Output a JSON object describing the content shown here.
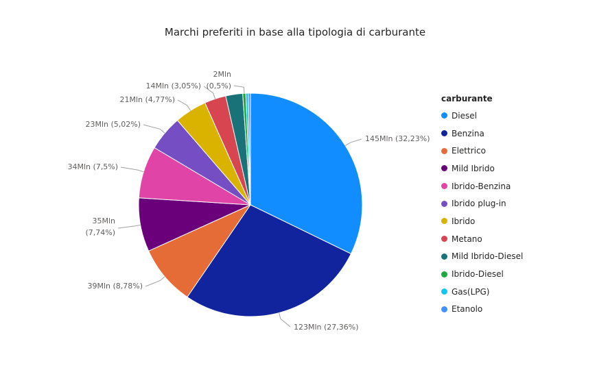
{
  "chart_data": {
    "type": "pie",
    "title": "Marchi preferiti in base alla tipologia di carburante",
    "legend_title": "carburante",
    "legend_position": "right",
    "slices": [
      {
        "name": "Diesel",
        "value": 145,
        "value_label": "145Mln",
        "percent_label": "(32,23%)",
        "color": "#118DFF"
      },
      {
        "name": "Benzina",
        "value": 123,
        "value_label": "123Mln",
        "percent_label": "(27,36%)",
        "color": "#12239E"
      },
      {
        "name": "Elettrico",
        "value": 39,
        "value_label": "39Mln",
        "percent_label": "(8,78%)",
        "color": "#E66C37"
      },
      {
        "name": "Mild Ibrido",
        "value": 35,
        "value_label": "35Mln",
        "percent_label": "(7,74%)",
        "color": "#6B007B"
      },
      {
        "name": "Ibrido-Benzina",
        "value": 34,
        "value_label": "34Mln",
        "percent_label": "(7,5%)",
        "color": "#E044A7"
      },
      {
        "name": "Ibrido plug-in",
        "value": 23,
        "value_label": "23Mln",
        "percent_label": "(5,02%)",
        "color": "#744EC2"
      },
      {
        "name": "Ibrido",
        "value": 21,
        "value_label": "21Mln",
        "percent_label": "(4,77%)",
        "color": "#D9B300"
      },
      {
        "name": "Metano",
        "value": 14,
        "value_label": "14Mln",
        "percent_label": "(3,05%)",
        "color": "#D64550"
      },
      {
        "name": "Mild Ibrido-Diesel",
        "value": 11,
        "value_label": "",
        "percent_label": "",
        "color": "#197278"
      },
      {
        "name": "Ibrido-Diesel",
        "value": 2,
        "value_label": "2Mln",
        "percent_label": "(0,5%)",
        "color": "#1AAB40"
      },
      {
        "name": "Gas(LPG)",
        "value": 1.6,
        "value_label": "",
        "percent_label": "",
        "color": "#15C6F4"
      },
      {
        "name": "Etanolo",
        "value": 1.4,
        "value_label": "",
        "percent_label": "",
        "color": "#4092FF"
      }
    ]
  }
}
